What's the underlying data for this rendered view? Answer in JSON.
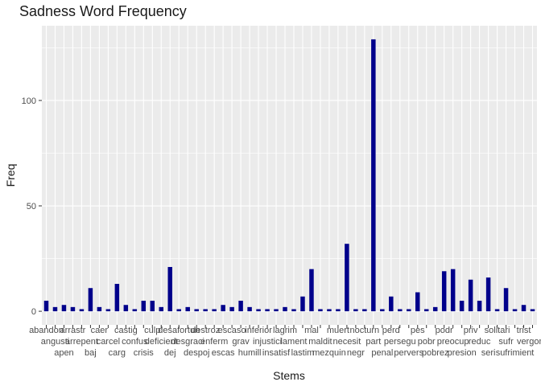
{
  "chart_data": {
    "type": "bar",
    "title": "Sadness Word Frequency",
    "xlabel": "Stems",
    "ylabel": "Freq",
    "ylim": [
      0,
      130
    ],
    "yticks": [
      0,
      50,
      100
    ],
    "grid": true,
    "legend": "none",
    "bar_color": "#00008B",
    "panel_color": "#EBEBEB",
    "categories": [
      "abandon",
      "angusti",
      "apen",
      "arrastr",
      "arrepent",
      "baj",
      "caer",
      "carcel",
      "carg",
      "castig",
      "confus",
      "crisis",
      "culp",
      "deficient",
      "dej",
      "desafortun",
      "desgraci",
      "despoj",
      "destroz",
      "enferm",
      "escas",
      "escaso",
      "grav",
      "humill",
      "inferior",
      "injustici",
      "insatisf",
      "lagrim",
      "lament",
      "lastim",
      "mal",
      "maldit",
      "mezquin",
      "muert",
      "necesit",
      "negr",
      "nocturn",
      "part",
      "penal",
      "perd",
      "persegu",
      "pervers",
      "pes",
      "pobr",
      "pobrez",
      "podr",
      "preocup",
      "presion",
      "priv",
      "reduc",
      "seri",
      "solitari",
      "sufr",
      "sufrimient",
      "trist",
      "vergonz"
    ],
    "values": [
      5,
      2,
      3,
      2,
      1,
      11,
      2,
      1,
      13,
      3,
      1,
      5,
      5,
      2,
      21,
      1,
      2,
      1,
      1,
      1,
      3,
      2,
      5,
      2,
      1,
      1,
      1,
      2,
      1,
      7,
      20,
      1,
      1,
      1,
      32,
      1,
      1,
      129,
      1,
      7,
      1,
      1,
      9,
      1,
      2,
      19,
      20,
      5,
      15,
      5,
      16,
      1,
      11,
      1,
      3,
      1
    ]
  }
}
